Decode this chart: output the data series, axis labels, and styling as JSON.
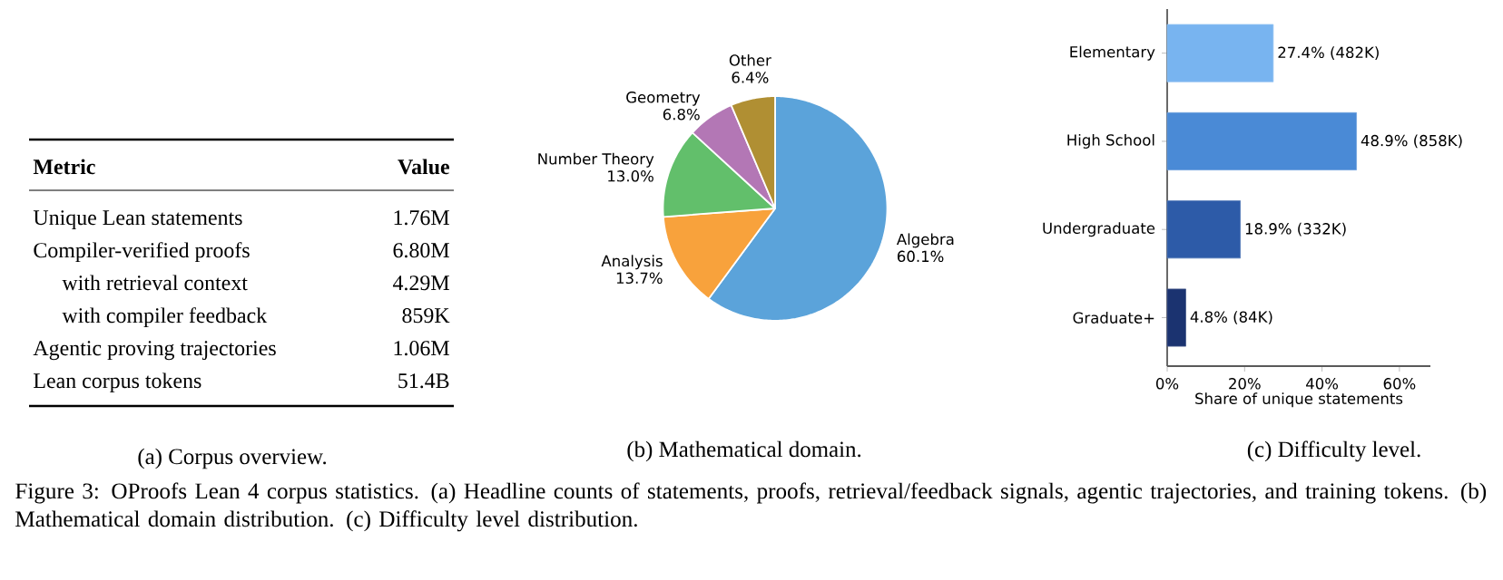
{
  "chart_data": [
    {
      "type": "other",
      "title": "(a) Corpus overview.",
      "annotations": [
        "Metric",
        "Value",
        "Unique Lean statements",
        "1.76M",
        "Compiler-verified proofs",
        "6.80M",
        "with retrieval context",
        "4.29M",
        "with compiler feedback",
        "859K",
        "Agentic proving trajectories",
        "1.06M",
        "Lean corpus tokens",
        "51.4B",
        "Figure 3: OProofs Lean 4 corpus statistics. (a) Headline counts of statements, proofs, retrieval/feedback signals, agentic trajectories, and training tokens. (b) Mathematical domain distribution. (c) Difficulty level distribution."
      ]
    },
    {
      "type": "pie",
      "title": "(b) Mathematical domain.",
      "categories": [
        "Algebra",
        "Analysis",
        "Number Theory",
        "Geometry",
        "Other"
      ],
      "values": [
        60.1,
        13.7,
        13.0,
        6.8,
        6.4
      ],
      "colors": [
        "#5ba3da",
        "#f8a23c",
        "#62bf6b",
        "#b377b5",
        "#b08f33"
      ],
      "value_labels": [
        "60.1%",
        "13.7%",
        "13.0%",
        "6.8%",
        "6.4%"
      ]
    },
    {
      "type": "bar",
      "orientation": "horizontal",
      "title": "(c) Difficulty level.",
      "xlabel": "Share of unique statements",
      "categories": [
        "Elementary",
        "High School",
        "Undergraduate",
        "Graduate+"
      ],
      "values": [
        27.4,
        48.9,
        18.9,
        4.8
      ],
      "colors": [
        "#78b4f0",
        "#4a8ad6",
        "#2d5ba8",
        "#1b3370"
      ],
      "value_labels": [
        "27.4%  (482K)",
        "48.9%  (858K)",
        "18.9%  (332K)",
        "4.8%  (84K)"
      ],
      "xlim": [
        0,
        68
      ],
      "xticks": [
        {
          "value": 0,
          "label": "0%"
        },
        {
          "value": 20,
          "label": "20%"
        },
        {
          "value": 40,
          "label": "40%"
        },
        {
          "value": 60,
          "label": "60%"
        }
      ]
    }
  ]
}
